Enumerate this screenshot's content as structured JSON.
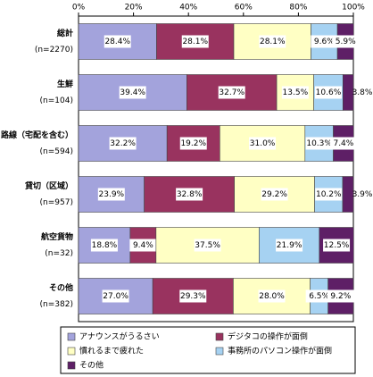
{
  "chart_data": {
    "type": "stacked-bar-horizontal",
    "categories": [
      "総計",
      "生鮮",
      "路線（宅配を含む）",
      "貸切（区域）",
      "航空貨物",
      "その他"
    ],
    "sample_sizes": [
      "(n=2270)",
      "(n=104)",
      "(n=594)",
      "(n=957)",
      "(n=32)",
      "(n=382)"
    ],
    "series": [
      {
        "name": "アナウンスがうるさい",
        "color": "#a3a3dc",
        "values": [
          28.4,
          39.4,
          32.2,
          23.9,
          18.8,
          27.0
        ],
        "value_labels": [
          "28.4%",
          "39.4%",
          "32.2%",
          "23.9%",
          "18.8%",
          "27.0%"
        ]
      },
      {
        "name": "デジタコの操作が面倒",
        "color": "#99335f",
        "values": [
          28.1,
          32.7,
          19.2,
          32.8,
          9.4,
          29.3
        ],
        "value_labels": [
          "28.1%",
          "32.7%",
          "19.2%",
          "32.8%",
          "9.4%",
          "29.3%"
        ]
      },
      {
        "name": "慣れるまで疲れた",
        "color": "#ffffc4",
        "values": [
          28.1,
          13.5,
          31.0,
          29.2,
          37.5,
          28.0
        ],
        "value_labels": [
          "28.1%",
          "13.5%",
          "31.0%",
          "29.2%",
          "37.5%",
          "28.0%"
        ]
      },
      {
        "name": "事務所のパソコン操作が面倒",
        "color": "#a6d2f2",
        "values": [
          9.6,
          10.6,
          10.3,
          10.2,
          21.9,
          6.5
        ],
        "value_labels": [
          "9.6%",
          "10.6%",
          "10.3%",
          "10.2%",
          "21.9%",
          "6.5%"
        ]
      },
      {
        "name": "その他",
        "color": "#5e1f66",
        "values": [
          5.9,
          3.8,
          7.4,
          3.9,
          12.5,
          9.2
        ],
        "value_labels": [
          "5.9%",
          "3.8%",
          "7.4%",
          "3.9%",
          "12.5%",
          "9.2%"
        ]
      }
    ],
    "xlim": [
      0,
      100
    ],
    "xticks": [
      {
        "value": 0,
        "label": "0%"
      },
      {
        "value": 20,
        "label": "20%"
      },
      {
        "value": 40,
        "label": "40%"
      },
      {
        "value": 60,
        "label": "60%"
      },
      {
        "value": 80,
        "label": "80%"
      },
      {
        "value": 100,
        "label": "100%"
      }
    ],
    "legend": "bottom"
  }
}
